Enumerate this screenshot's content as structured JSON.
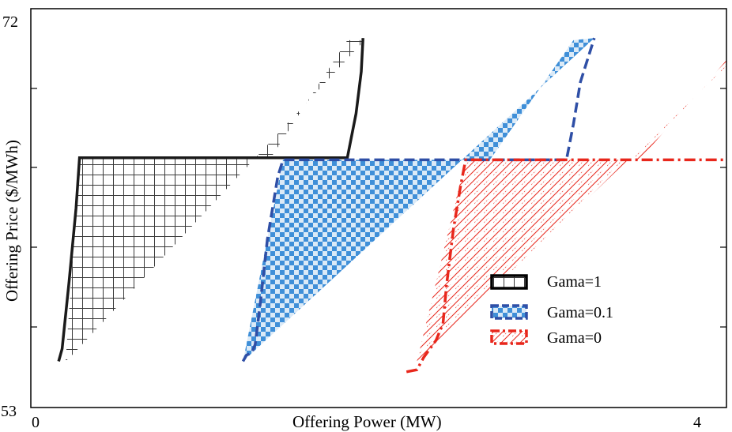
{
  "chart_data": {
    "type": "area",
    "title": "",
    "xlabel": "Offering Power (MW)",
    "ylabel": "Offering Price ($/MWh)",
    "xlim": [
      0,
      4
    ],
    "ylim": [
      53,
      72
    ],
    "x_tick_labels": [
      "0",
      "4"
    ],
    "y_tick_labels": [
      "72",
      "53"
    ],
    "grid": false,
    "legend_position": "center-right",
    "colors": {
      "gama1": "#1a1a1a",
      "gama01": "#2f4fa6",
      "gama01_fill": "#4a8fd4",
      "gama0": "#e8271c"
    },
    "series": [
      {
        "name": "Gama=1",
        "line_style": "solid",
        "fill_style": "grid-hatch",
        "region_fill": [
          [
            0.2,
            55.2
          ],
          [
            0.28,
            64.9
          ],
          [
            1.38,
            64.9
          ],
          [
            1.82,
            70.5
          ],
          [
            1.92,
            70.5
          ],
          [
            0.25,
            55.6
          ]
        ],
        "curve": [
          [
            0.16,
            55.2
          ],
          [
            0.18,
            55.8
          ],
          [
            0.22,
            59.0
          ],
          [
            0.26,
            62.5
          ],
          [
            0.28,
            64.9
          ],
          [
            1.14,
            64.9
          ],
          [
            1.82,
            64.9
          ],
          [
            1.87,
            67.0
          ],
          [
            1.9,
            69.0
          ],
          [
            1.91,
            70.6
          ]
        ]
      },
      {
        "name": "Gama=0.1",
        "line_style": "dashed",
        "fill_style": "checker",
        "region_fill": [
          [
            1.22,
            55.2
          ],
          [
            1.45,
            64.8
          ],
          [
            2.64,
            64.8
          ],
          [
            3.12,
            70.5
          ],
          [
            3.24,
            70.6
          ],
          [
            1.22,
            55.2
          ]
        ],
        "curve": [
          [
            1.22,
            55.2
          ],
          [
            1.24,
            55.5
          ],
          [
            1.27,
            55.6
          ],
          [
            1.29,
            56.0
          ],
          [
            1.32,
            58.0
          ],
          [
            1.36,
            61.0
          ],
          [
            1.42,
            64.0
          ],
          [
            1.45,
            64.8
          ],
          [
            2.64,
            64.8
          ],
          [
            3.08,
            64.8
          ],
          [
            3.12,
            66.5
          ],
          [
            3.16,
            68.5
          ],
          [
            3.24,
            70.6
          ]
        ]
      },
      {
        "name": "Gama=0",
        "line_style": "dash-dot",
        "fill_style": "brick-hatch",
        "region_fill": [
          [
            2.22,
            55.2
          ],
          [
            2.5,
            64.8
          ],
          [
            3.5,
            64.8
          ],
          [
            4.1,
            70.5
          ],
          [
            4.17,
            70.6
          ],
          [
            2.22,
            55.2
          ]
        ],
        "curve": [
          [
            2.16,
            54.7
          ],
          [
            2.22,
            54.8
          ],
          [
            2.26,
            55.4
          ],
          [
            2.33,
            56.2
          ],
          [
            2.37,
            57.0
          ],
          [
            2.39,
            58.8
          ],
          [
            2.43,
            61.5
          ],
          [
            2.47,
            63.5
          ],
          [
            2.5,
            64.8
          ],
          [
            3.58,
            64.8
          ],
          [
            4.07,
            64.8
          ],
          [
            4.08,
            66.0
          ],
          [
            4.12,
            68.0
          ],
          [
            4.2,
            70.6
          ]
        ]
      }
    ]
  },
  "legend": {
    "items": [
      {
        "label": "Gama=1"
      },
      {
        "label": "Gama=0.1"
      },
      {
        "label": "Gama=0"
      }
    ]
  }
}
